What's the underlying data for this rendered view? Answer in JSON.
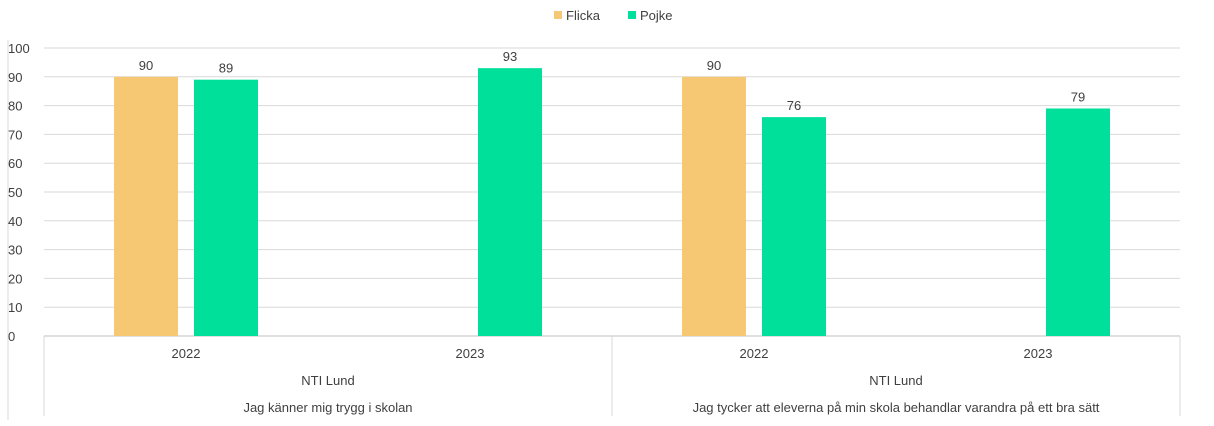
{
  "chart_data": {
    "type": "bar",
    "legend": [
      {
        "name": "Flicka",
        "color": "#F7C873"
      },
      {
        "name": "Pojke",
        "color": "#00E09A"
      }
    ],
    "legend_position": "top",
    "ylim": [
      0,
      100
    ],
    "yticks": [
      0,
      10,
      20,
      30,
      40,
      50,
      60,
      70,
      80,
      90,
      100
    ],
    "grid": true,
    "groups": [
      {
        "question": "Jag känner mig trygg i skolan",
        "school": "NTI Lund",
        "years": [
          {
            "year": "2022",
            "values": {
              "Flicka": 90,
              "Pojke": 89
            }
          },
          {
            "year": "2023",
            "values": {
              "Flicka": null,
              "Pojke": 93
            }
          }
        ]
      },
      {
        "question": "Jag tycker att eleverna på min skola behandlar varandra på ett bra sätt",
        "school": "NTI Lund",
        "years": [
          {
            "year": "2022",
            "values": {
              "Flicka": 90,
              "Pojke": 76
            }
          },
          {
            "year": "2023",
            "values": {
              "Flicka": null,
              "Pojke": 79
            }
          }
        ]
      }
    ]
  }
}
